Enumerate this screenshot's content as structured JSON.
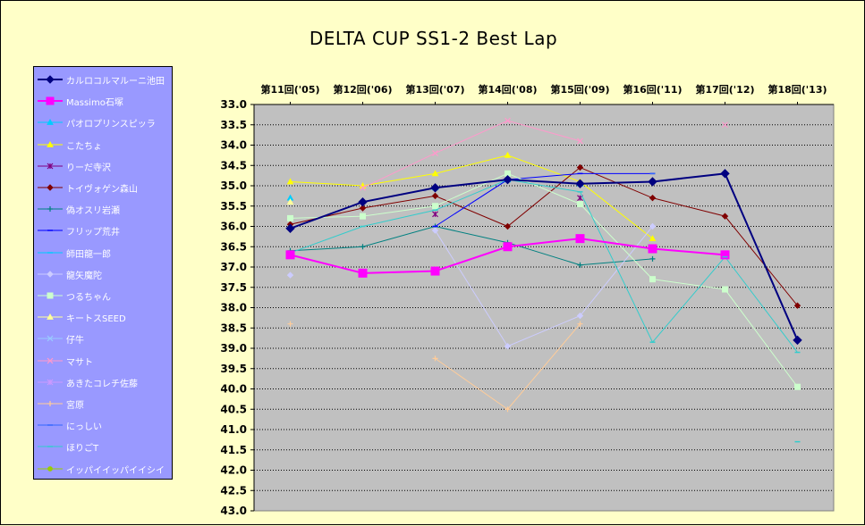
{
  "chart_data": {
    "type": "line",
    "title": "DELTA  CUP SS1-2 Best Lap",
    "categories": [
      "第11回('05)",
      "第12回('06)",
      "第13回('07)",
      "第14回('08)",
      "第15回('09)",
      "第16回('11)",
      "第17回('12)",
      "第18回('13)"
    ],
    "y_axis": {
      "min": 33.0,
      "max": 43.0,
      "step": 0.5,
      "reversed": true,
      "tick_labels": [
        "33.0",
        "33.5",
        "34.0",
        "34.5",
        "35.0",
        "35.5",
        "36.0",
        "36.5",
        "37.0",
        "37.5",
        "38.0",
        "38.5",
        "39.0",
        "39.5",
        "40.0",
        "40.5",
        "41.0",
        "41.5",
        "42.0",
        "42.5",
        "43.0"
      ]
    },
    "x_axis_position": "top",
    "grid": "horizontal-dotted",
    "legend_position": "left",
    "plot_background": "#c0c0c0",
    "series": [
      {
        "name": "カルロコルマルーニ池田",
        "color": "#000080",
        "marker": "diamond",
        "width": 2,
        "values": [
          36.05,
          35.4,
          35.05,
          34.85,
          34.95,
          34.9,
          34.7,
          38.8
        ]
      },
      {
        "name": "Massimo石塚",
        "color": "#ff00ff",
        "marker": "square",
        "width": 2,
        "values": [
          36.7,
          37.15,
          37.1,
          36.5,
          36.3,
          36.55,
          36.7,
          null
        ]
      },
      {
        "name": "パオロプリンスピッラ",
        "color": "#00ccff",
        "marker": "triangle",
        "width": 1,
        "values": [
          35.3,
          null,
          35.05,
          34.85,
          34.95,
          null,
          null,
          null
        ]
      },
      {
        "name": "こたちょ",
        "color": "#ffff00",
        "marker": "triangle",
        "width": 1,
        "values": [
          34.9,
          35.0,
          34.7,
          34.25,
          34.9,
          36.3,
          null,
          null
        ]
      },
      {
        "name": "りーだ寺沢",
        "color": "#800080",
        "marker": "star",
        "width": 1,
        "values": [
          null,
          null,
          35.7,
          null,
          35.3,
          null,
          null,
          null
        ]
      },
      {
        "name": "トイヴォゲン森山",
        "color": "#800000",
        "marker": "diamond",
        "width": 1,
        "values": [
          35.95,
          35.55,
          35.25,
          36.0,
          34.55,
          35.3,
          35.75,
          37.95
        ]
      },
      {
        "name": "偽オスリ岩瀬",
        "color": "#008080",
        "marker": "plus",
        "width": 1,
        "values": [
          36.6,
          36.5,
          36.0,
          36.4,
          36.95,
          36.8,
          null,
          null
        ]
      },
      {
        "name": "フリップ荒井",
        "color": "#0000ff",
        "marker": "dash",
        "width": 1,
        "values": [
          null,
          null,
          36.0,
          34.85,
          34.7,
          34.7,
          null,
          null
        ]
      },
      {
        "name": "師田龍一郎",
        "color": "#00ccff",
        "marker": "dash",
        "width": 1,
        "values": [
          null,
          null,
          null,
          null,
          null,
          null,
          null,
          null
        ]
      },
      {
        "name": "龍矢魔陀",
        "color": "#ccccff",
        "marker": "diamond",
        "width": 1,
        "values": [
          37.2,
          null,
          36.1,
          38.95,
          38.2,
          36.0,
          null,
          null
        ]
      },
      {
        "name": "つるちゃん",
        "color": "#ccffcc",
        "marker": "square",
        "width": 1,
        "values": [
          35.8,
          35.75,
          35.5,
          34.7,
          35.45,
          37.3,
          37.55,
          39.95
        ]
      },
      {
        "name": "キートスSEED",
        "color": "#ffff99",
        "marker": "triangle",
        "width": 1,
        "values": [
          35.4,
          null,
          null,
          null,
          null,
          null,
          null,
          null
        ]
      },
      {
        "name": "仔牛",
        "color": "#99ccff",
        "marker": "x",
        "width": 1,
        "values": [
          null,
          null,
          null,
          null,
          null,
          null,
          null,
          null
        ]
      },
      {
        "name": "マサト",
        "color": "#ff99cc",
        "marker": "x",
        "width": 1,
        "values": [
          null,
          35.05,
          34.2,
          33.4,
          33.9,
          null,
          33.5,
          null
        ]
      },
      {
        "name": "あきたコレチ佐藤",
        "color": "#cc99ff",
        "marker": "star",
        "width": 1,
        "values": [
          null,
          null,
          null,
          null,
          null,
          null,
          null,
          null
        ]
      },
      {
        "name": "宮原",
        "color": "#ffcc99",
        "marker": "plus",
        "width": 1,
        "values": [
          38.4,
          null,
          39.25,
          40.5,
          38.4,
          null,
          null,
          null
        ]
      },
      {
        "name": "にっしい",
        "color": "#3366ff",
        "marker": "dash",
        "width": 1,
        "values": [
          null,
          null,
          null,
          null,
          null,
          34.7,
          null,
          null
        ]
      },
      {
        "name": "ほりごT",
        "color": "#33cccc",
        "marker": "dash",
        "width": 1,
        "values": [
          36.65,
          36.0,
          35.6,
          34.85,
          35.15,
          38.85,
          36.75,
          39.1
        ]
      },
      {
        "name": "イッパイイッパイイシイ",
        "color": "#99cc00",
        "marker": "dot",
        "width": 1,
        "values": [
          null,
          null,
          null,
          null,
          null,
          null,
          null,
          null
        ]
      }
    ],
    "extra_points": [
      {
        "series": "ほりごT",
        "category_index": 7,
        "value": 41.3
      },
      {
        "series": "ほりごT",
        "category_index": 6,
        "value": 36.75
      }
    ]
  }
}
